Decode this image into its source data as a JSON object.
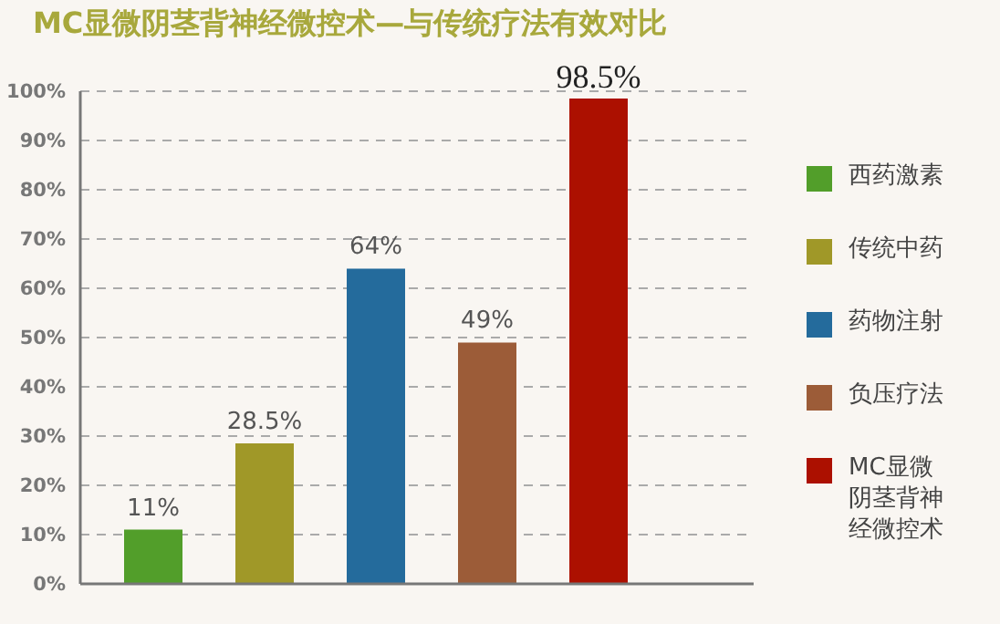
{
  "chart_data": {
    "type": "bar",
    "title": "MC显微阴茎背神经微控术—与传统疗法有效对比",
    "categories": [
      null
    ],
    "series": [
      {
        "name": "西药激素",
        "color": "#529e2a",
        "values": [
          11
        ],
        "value_labels": [
          "11%"
        ]
      },
      {
        "name": "传统中药",
        "color": "#a09828",
        "values": [
          28.5
        ],
        "value_labels": [
          "28.5%"
        ]
      },
      {
        "name": "药物注射",
        "color": "#246b9c",
        "values": [
          64
        ],
        "value_labels": [
          "64%"
        ]
      },
      {
        "name": "负压疗法",
        "color": "#9c5c38",
        "values": [
          49
        ],
        "value_labels": [
          "49%"
        ]
      },
      {
        "name": "MC显微阴茎背神经微控术",
        "color": "#ac1000",
        "values": [
          98.5
        ],
        "value_labels": [
          "98.5%"
        ]
      }
    ],
    "ylim": [
      0,
      100
    ],
    "yticks": [
      {
        "value": 0,
        "label": "0%"
      },
      {
        "value": 10,
        "label": "10%"
      },
      {
        "value": 20,
        "label": "20%"
      },
      {
        "value": 30,
        "label": "30%"
      },
      {
        "value": 40,
        "label": "40%"
      },
      {
        "value": 50,
        "label": "50%"
      },
      {
        "value": 60,
        "label": "60%"
      },
      {
        "value": 70,
        "label": "70%"
      },
      {
        "value": 80,
        "label": "80%"
      },
      {
        "value": 90,
        "label": "90%"
      },
      {
        "value": 100,
        "label": "100%"
      }
    ],
    "grid": "y",
    "legend": "right",
    "tick_labels": "y"
  }
}
